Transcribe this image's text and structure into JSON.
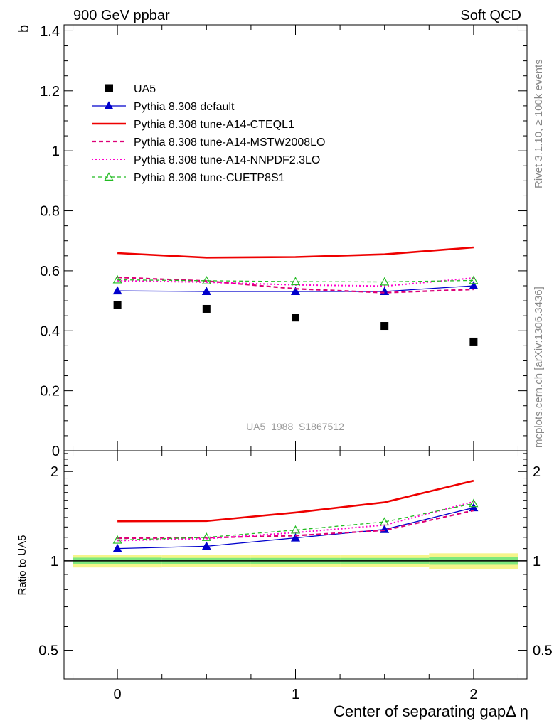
{
  "header": {
    "left_title": "900 GeV ppbar",
    "right_title": "Soft QCD"
  },
  "side_labels": {
    "rivet": "Rivet 3.1.10, ≥ 100k events",
    "mcplots": "mcplots.cern.ch [arXiv:1306.3436]"
  },
  "watermark": "UA5_1988_S1867512",
  "colors": {
    "data": "#000000",
    "default": "#0000cc",
    "cteql1": "#ee0000",
    "mstw": "#dd0077",
    "nnpdf": "#ff00cc",
    "cuetp8s1": "#22bb22",
    "band_outer": "#f5f58a",
    "band_inner": "#7ee87e"
  },
  "chart_data": [
    {
      "type": "line",
      "title": "",
      "ylabel": "b",
      "xlabel": "",
      "xlim": [
        -0.3,
        2.3
      ],
      "ylim": [
        0,
        1.42
      ],
      "yticks": [
        0,
        0.2,
        0.4,
        0.6,
        0.8,
        1,
        1.2,
        1.4
      ],
      "ytick_labels": [
        "0",
        "0.2",
        "0.4",
        "0.6",
        "0.8",
        "1",
        "1.2",
        "1.4"
      ],
      "x": [
        0,
        0.5,
        1,
        1.5,
        2
      ],
      "legend_position": "top-left",
      "series": [
        {
          "name": "UA5",
          "key": "data",
          "style": "points",
          "values": [
            0.485,
            0.473,
            0.444,
            0.416,
            0.364
          ]
        },
        {
          "name": "Pythia 8.308 default",
          "key": "default",
          "style": "line-triangle",
          "values": [
            0.533,
            0.531,
            0.531,
            0.531,
            0.55
          ]
        },
        {
          "name": "Pythia 8.308 tune-A14-CTEQL1",
          "key": "cteql1",
          "style": "line-thick",
          "values": [
            0.659,
            0.644,
            0.646,
            0.655,
            0.678
          ]
        },
        {
          "name": "Pythia 8.308 tune-A14-MSTW2008LO",
          "key": "mstw",
          "style": "dashed",
          "values": [
            0.578,
            0.566,
            0.54,
            0.527,
            0.538
          ]
        },
        {
          "name": "Pythia 8.308 tune-A14-NNPDF2.3LO",
          "key": "nnpdf",
          "style": "dotted",
          "values": [
            0.567,
            0.562,
            0.553,
            0.549,
            0.576
          ]
        },
        {
          "name": "Pythia 8.308 tune-CUETP8S1",
          "key": "cuetp8s1",
          "style": "dashed-triangle",
          "values": [
            0.57,
            0.567,
            0.564,
            0.563,
            0.568
          ]
        }
      ]
    },
    {
      "type": "line",
      "title": "",
      "ylabel": "Ratio to UA5",
      "xlabel": "Center of separating gapΔ η",
      "xlim": [
        -0.3,
        2.3
      ],
      "ylim": [
        0.4,
        2.35
      ],
      "yscale": "log",
      "yticks": [
        0.5,
        1,
        2
      ],
      "ytick_labels": [
        "0.5",
        "1",
        "2"
      ],
      "xticks": [
        0,
        1,
        2
      ],
      "xtick_labels": [
        "0",
        "1",
        "2"
      ],
      "x": [
        0,
        0.5,
        1,
        1.5,
        2
      ],
      "reference_line": 1,
      "band": {
        "bins": [
          [
            -0.25,
            0.25
          ],
          [
            0.25,
            0.75
          ],
          [
            0.75,
            1.25
          ],
          [
            1.25,
            1.75
          ],
          [
            1.75,
            2.25
          ]
        ],
        "outer": [
          [
            0.95,
            1.05
          ],
          [
            0.955,
            1.045
          ],
          [
            0.955,
            1.045
          ],
          [
            0.955,
            1.045
          ],
          [
            0.94,
            1.06
          ]
        ],
        "inner": [
          [
            0.975,
            1.025
          ],
          [
            0.977,
            1.023
          ],
          [
            0.977,
            1.023
          ],
          [
            0.977,
            1.023
          ],
          [
            0.97,
            1.03
          ]
        ]
      },
      "series": [
        {
          "name": "Pythia 8.308 default",
          "key": "default",
          "style": "line-triangle",
          "values": [
            1.1,
            1.12,
            1.195,
            1.276,
            1.51
          ]
        },
        {
          "name": "Pythia 8.308 tune-A14-CTEQL1",
          "key": "cteql1",
          "style": "line-thick",
          "values": [
            1.36,
            1.362,
            1.455,
            1.575,
            1.862
          ]
        },
        {
          "name": "Pythia 8.308 tune-A14-MSTW2008LO",
          "key": "mstw",
          "style": "dashed",
          "values": [
            1.192,
            1.197,
            1.216,
            1.267,
            1.478
          ]
        },
        {
          "name": "Pythia 8.308 tune-A14-NNPDF2.3LO",
          "key": "nnpdf",
          "style": "dotted",
          "values": [
            1.17,
            1.188,
            1.245,
            1.32,
            1.582
          ]
        },
        {
          "name": "Pythia 8.308 tune-CUETP8S1",
          "key": "cuetp8s1",
          "style": "dashed-triangle",
          "values": [
            1.175,
            1.2,
            1.27,
            1.353,
            1.56
          ]
        }
      ]
    }
  ]
}
